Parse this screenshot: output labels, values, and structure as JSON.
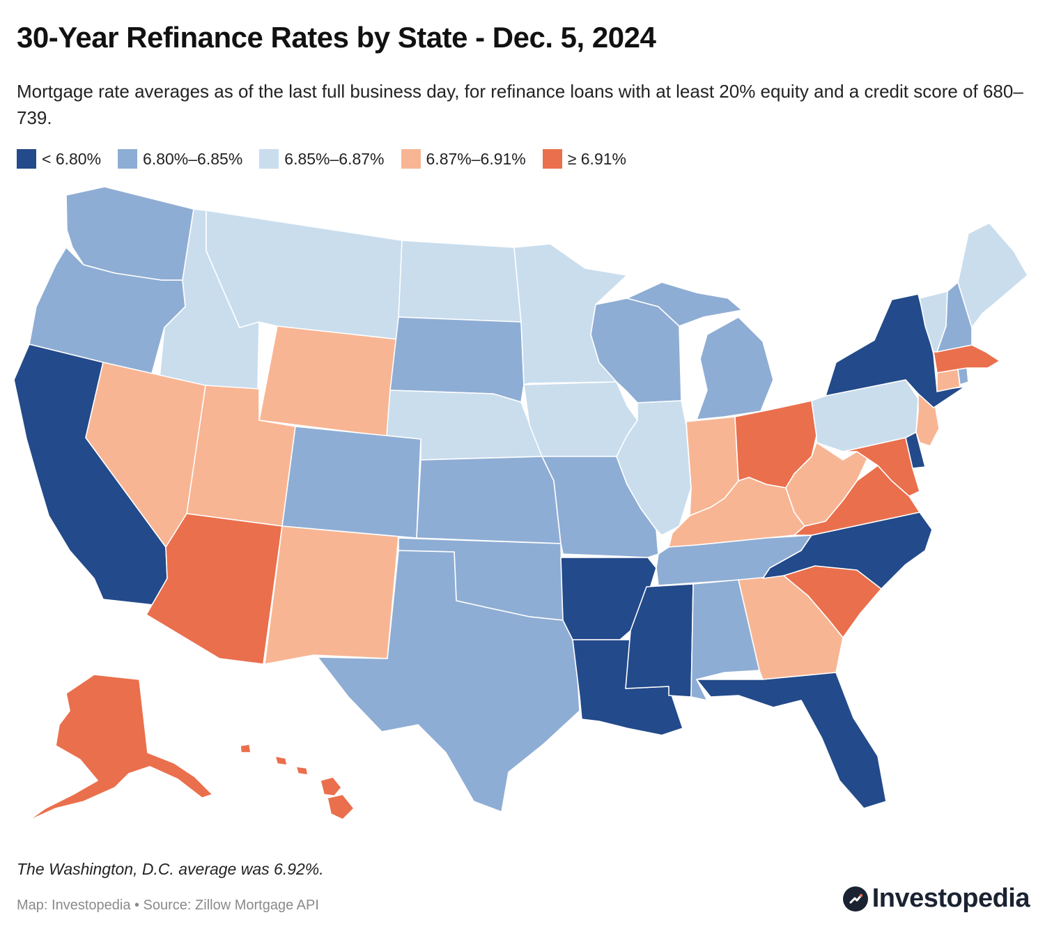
{
  "title": "30-Year Refinance Rates by State - Dec. 5, 2024",
  "subtitle": "Mortgage rate averages as of the last full business day, for refinance loans with at least 20% equity and a credit score of 680–739.",
  "legend": [
    {
      "label": "< 6.80%",
      "color": "#234a8a"
    },
    {
      "label": "6.80%–6.85%",
      "color": "#8eadd4"
    },
    {
      "label": "6.85%–6.87%",
      "color": "#c9dded"
    },
    {
      "label": "6.87%–6.91%",
      "color": "#f8b593"
    },
    {
      "label": "≥ 6.91%",
      "color": "#ea6f4c"
    }
  ],
  "states": [
    {
      "abbr": "WA",
      "bin": 1
    },
    {
      "abbr": "OR",
      "bin": 1
    },
    {
      "abbr": "CA",
      "bin": 0
    },
    {
      "abbr": "ID",
      "bin": 2
    },
    {
      "abbr": "NV",
      "bin": 3
    },
    {
      "abbr": "MT",
      "bin": 2
    },
    {
      "abbr": "WY",
      "bin": 3
    },
    {
      "abbr": "UT",
      "bin": 3
    },
    {
      "abbr": "AZ",
      "bin": 4
    },
    {
      "abbr": "CO",
      "bin": 1
    },
    {
      "abbr": "NM",
      "bin": 3
    },
    {
      "abbr": "ND",
      "bin": 2
    },
    {
      "abbr": "SD",
      "bin": 1
    },
    {
      "abbr": "NE",
      "bin": 2
    },
    {
      "abbr": "KS",
      "bin": 1
    },
    {
      "abbr": "OK",
      "bin": 1
    },
    {
      "abbr": "TX",
      "bin": 1
    },
    {
      "abbr": "MN",
      "bin": 2
    },
    {
      "abbr": "IA",
      "bin": 2
    },
    {
      "abbr": "MO",
      "bin": 1
    },
    {
      "abbr": "AR",
      "bin": 0
    },
    {
      "abbr": "LA",
      "bin": 0
    },
    {
      "abbr": "WI",
      "bin": 1
    },
    {
      "abbr": "IL",
      "bin": 2
    },
    {
      "abbr": "MI",
      "bin": 1
    },
    {
      "abbr": "IN",
      "bin": 3
    },
    {
      "abbr": "OH",
      "bin": 4
    },
    {
      "abbr": "KY",
      "bin": 3
    },
    {
      "abbr": "TN",
      "bin": 1
    },
    {
      "abbr": "MS",
      "bin": 0
    },
    {
      "abbr": "AL",
      "bin": 1
    },
    {
      "abbr": "GA",
      "bin": 3
    },
    {
      "abbr": "FL",
      "bin": 0
    },
    {
      "abbr": "SC",
      "bin": 4
    },
    {
      "abbr": "NC",
      "bin": 0
    },
    {
      "abbr": "VA",
      "bin": 4
    },
    {
      "abbr": "WV",
      "bin": 3
    },
    {
      "abbr": "MD",
      "bin": 4
    },
    {
      "abbr": "DE",
      "bin": 0
    },
    {
      "abbr": "NJ",
      "bin": 3
    },
    {
      "abbr": "PA",
      "bin": 2
    },
    {
      "abbr": "NY",
      "bin": 0
    },
    {
      "abbr": "CT",
      "bin": 3
    },
    {
      "abbr": "RI",
      "bin": 1
    },
    {
      "abbr": "MA",
      "bin": 4
    },
    {
      "abbr": "VT",
      "bin": 2
    },
    {
      "abbr": "NH",
      "bin": 1
    },
    {
      "abbr": "ME",
      "bin": 2
    },
    {
      "abbr": "AK",
      "bin": 4
    },
    {
      "abbr": "HI",
      "bin": 4
    }
  ],
  "note": "The Washington, D.C. average was 6.92%.",
  "source": "Map: Investopedia • Source: Zillow Mortgage API",
  "brand": "Investopedia"
}
